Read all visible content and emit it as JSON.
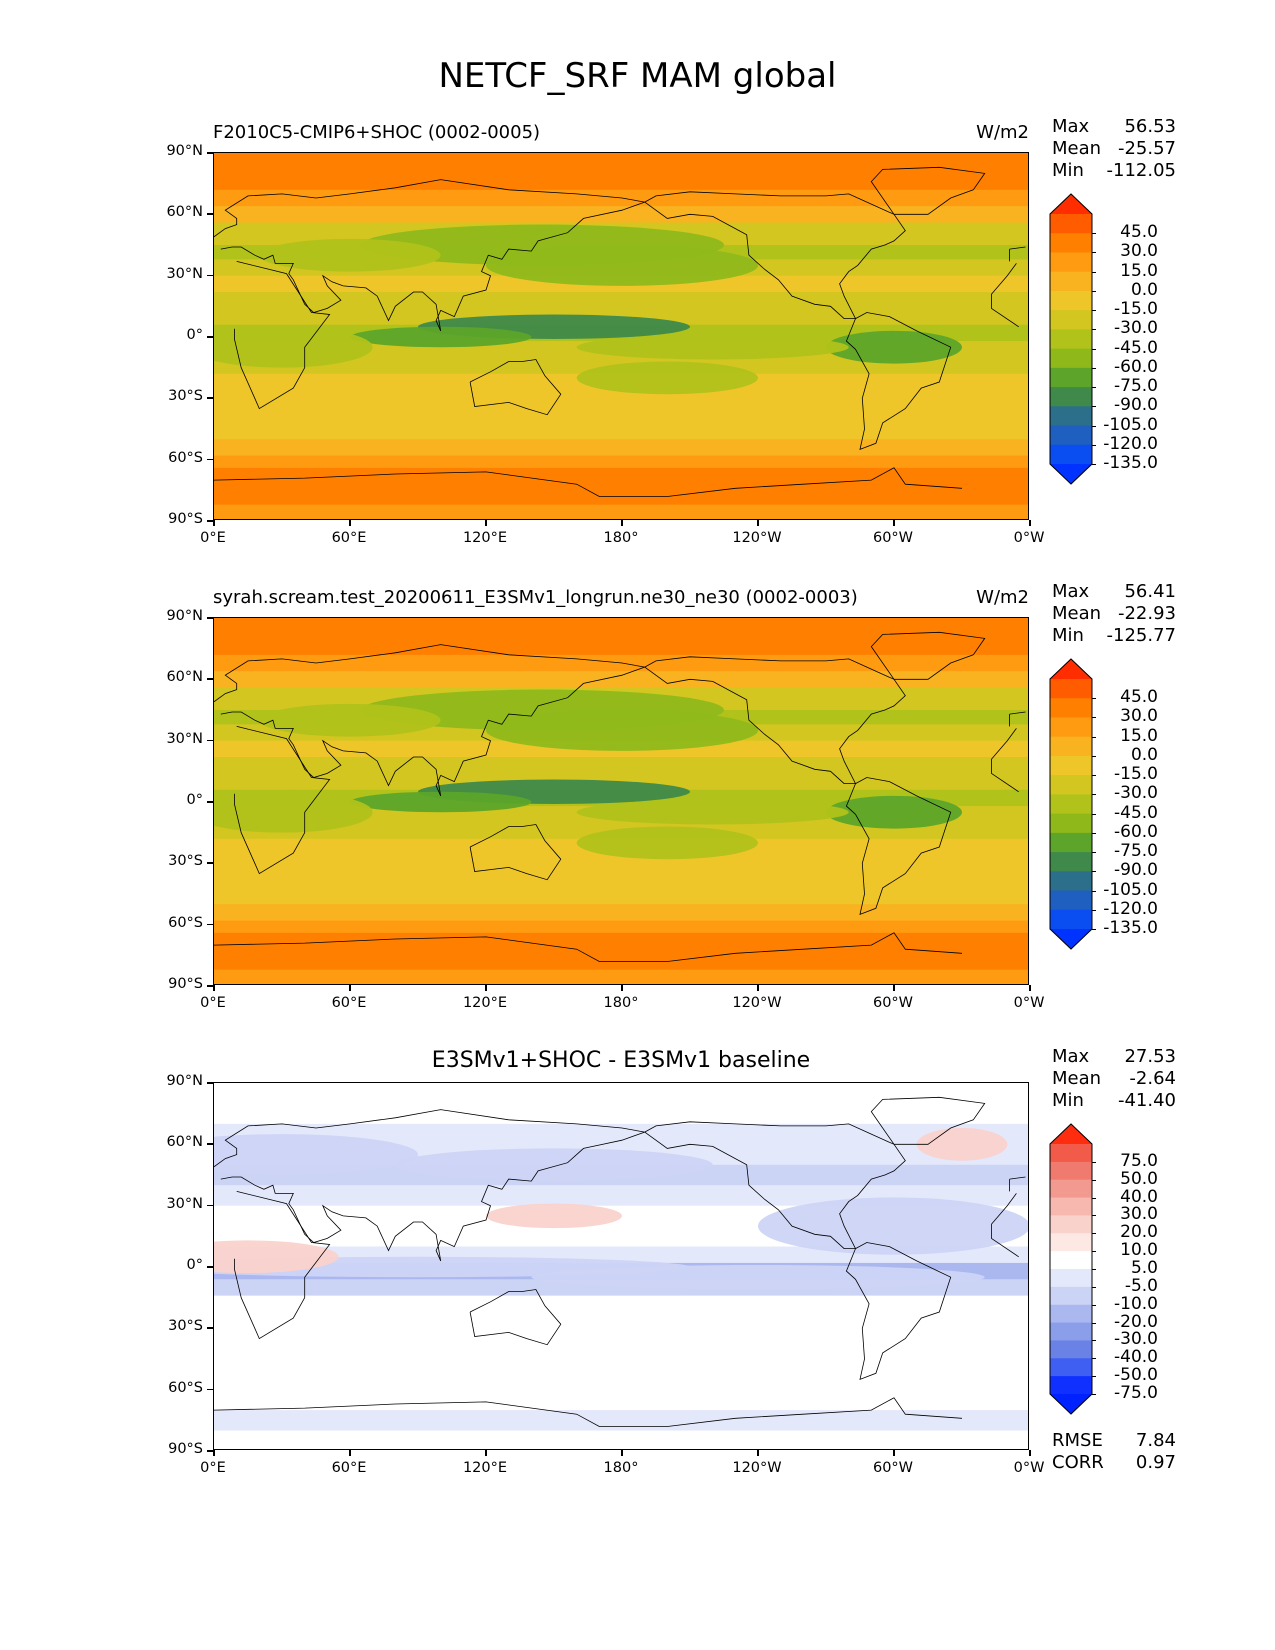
{
  "figure": {
    "title": "NETCF_SRF MAM global"
  },
  "panels": [
    {
      "title": "F2010C5-CMIP6+SHOC (0002-0005)",
      "units": "W/m2",
      "stats": {
        "max_label": "Max",
        "max": "56.53",
        "mean_label": "Mean",
        "mean": "-25.57",
        "min_label": "Min",
        "min": "-112.05"
      },
      "colorbar": {
        "labels": [
          "45.0",
          "30.0",
          "15.0",
          "0.0",
          "-15.0",
          "-30.0",
          "-45.0",
          "-60.0",
          "-75.0",
          "-90.0",
          "-105.0",
          "-120.0",
          "-135.0"
        ],
        "colors": [
          "#ff2d00",
          "#ff5c00",
          "#ff7f00",
          "#ff9b10",
          "#f9b320",
          "#eec62a",
          "#d3c620",
          "#b1c21a",
          "#8fb91a",
          "#5da52a",
          "#3f8a4a",
          "#2b6f8a",
          "#1e5fc0",
          "#0a4df0",
          "#0033ff"
        ]
      }
    },
    {
      "title": "syrah.scream.test_20200611_E3SMv1_longrun.ne30_ne30 (0002-0003)",
      "units": "W/m2",
      "stats": {
        "max_label": "Max",
        "max": "56.41",
        "mean_label": "Mean",
        "mean": "-22.93",
        "min_label": "Min",
        "min": "-125.77"
      },
      "colorbar": {
        "labels": [
          "45.0",
          "30.0",
          "15.0",
          "0.0",
          "-15.0",
          "-30.0",
          "-45.0",
          "-60.0",
          "-75.0",
          "-90.0",
          "-105.0",
          "-120.0",
          "-135.0"
        ],
        "colors": [
          "#ff2d00",
          "#ff5c00",
          "#ff7f00",
          "#ff9b10",
          "#f9b320",
          "#eec62a",
          "#d3c620",
          "#b1c21a",
          "#8fb91a",
          "#5da52a",
          "#3f8a4a",
          "#2b6f8a",
          "#1e5fc0",
          "#0a4df0",
          "#0033ff"
        ]
      }
    },
    {
      "title": "E3SMv1+SHOC - E3SMv1 baseline",
      "units": "",
      "stats": {
        "max_label": "Max",
        "max": "27.53",
        "mean_label": "Mean",
        "mean": "-2.64",
        "min_label": "Min",
        "min": "-41.40"
      },
      "rmse": {
        "rmse_label": "RMSE",
        "rmse": "7.84",
        "corr_label": "CORR",
        "corr": "0.97"
      },
      "colorbar": {
        "labels": [
          "75.0",
          "50.0",
          "40.0",
          "30.0",
          "20.0",
          "10.0",
          "5.0",
          "-5.0",
          "-10.0",
          "-20.0",
          "-30.0",
          "-40.0",
          "-50.0",
          "-75.0"
        ],
        "colors": [
          "#ff2d10",
          "#f25a4a",
          "#f07a6e",
          "#f39a90",
          "#f7b8b0",
          "#fad2cc",
          "#fde8e4",
          "#ffffff",
          "#e4e8fb",
          "#ccd4f6",
          "#aab8ef",
          "#8a9ee9",
          "#6a82e6",
          "#3f5ff2",
          "#1030ff",
          "#0022ff"
        ]
      }
    }
  ],
  "axes": {
    "yticks": [
      "90°N",
      "60°N",
      "30°N",
      "0°",
      "30°S",
      "60°S",
      "90°S"
    ],
    "xticks": [
      "0°E",
      "60°E",
      "120°E",
      "180°",
      "120°W",
      "60°W",
      "0°W"
    ]
  }
}
